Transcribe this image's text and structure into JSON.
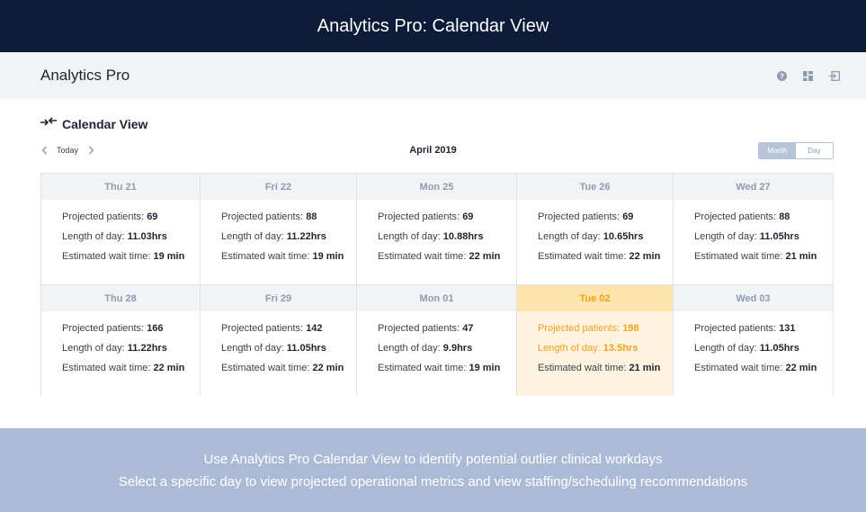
{
  "banner": {
    "title": "Analytics Pro: Calendar View"
  },
  "app": {
    "name": "Analytics Pro",
    "icons": [
      "help-icon",
      "dashboard-icon",
      "logout-icon"
    ]
  },
  "view": {
    "title": "Calendar View",
    "icon": "collapse-arrows-icon"
  },
  "nav": {
    "today_label": "Today",
    "month_label": "April 2019"
  },
  "toggle": {
    "month_label": "Month",
    "day_label": "Day",
    "active": "Month"
  },
  "labels": {
    "patients": "Projected patients:",
    "length": "Length of day:",
    "wait": "Estimated wait time:"
  },
  "days": [
    {
      "label": "Thu 21",
      "patients": "69",
      "length": "11.03hrs",
      "wait": "19 min"
    },
    {
      "label": "Fri 22",
      "patients": "88",
      "length": "11.22hrs",
      "wait": "19 min"
    },
    {
      "label": "Mon 25",
      "patients": "69",
      "length": "10.88hrs",
      "wait": "22 min"
    },
    {
      "label": "Tue 26",
      "patients": "69",
      "length": "10.65hrs",
      "wait": "22 min"
    },
    {
      "label": "Wed 27",
      "patients": "88",
      "length": "11.05hrs",
      "wait": "21 min"
    },
    {
      "label": "Thu 28",
      "patients": "166",
      "length": "11.22hrs",
      "wait": "22 min"
    },
    {
      "label": "Fri 29",
      "patients": "142",
      "length": "11.05hrs",
      "wait": "22 min"
    },
    {
      "label": "Mon 01",
      "patients": "47",
      "length": "9.9hrs",
      "wait": "19 min"
    },
    {
      "label": "Tue 02",
      "patients": "198",
      "length": "13.5hrs",
      "wait": "21 min",
      "highlight": true
    },
    {
      "label": "Wed 03",
      "patients": "131",
      "length": "11.05hrs",
      "wait": "22 min"
    }
  ],
  "colors": {
    "banner": "#0b1b38",
    "highlight_text": "#f0a21c",
    "highlight_bg": "#fdf3df",
    "footer": "#abbbd6"
  },
  "footer": {
    "line1": "Use Analytics Pro Calendar View to identify potential outlier clinical workdays",
    "line2": "Select a specific day to view projected operational metrics and view staffing/scheduling recommendations"
  }
}
